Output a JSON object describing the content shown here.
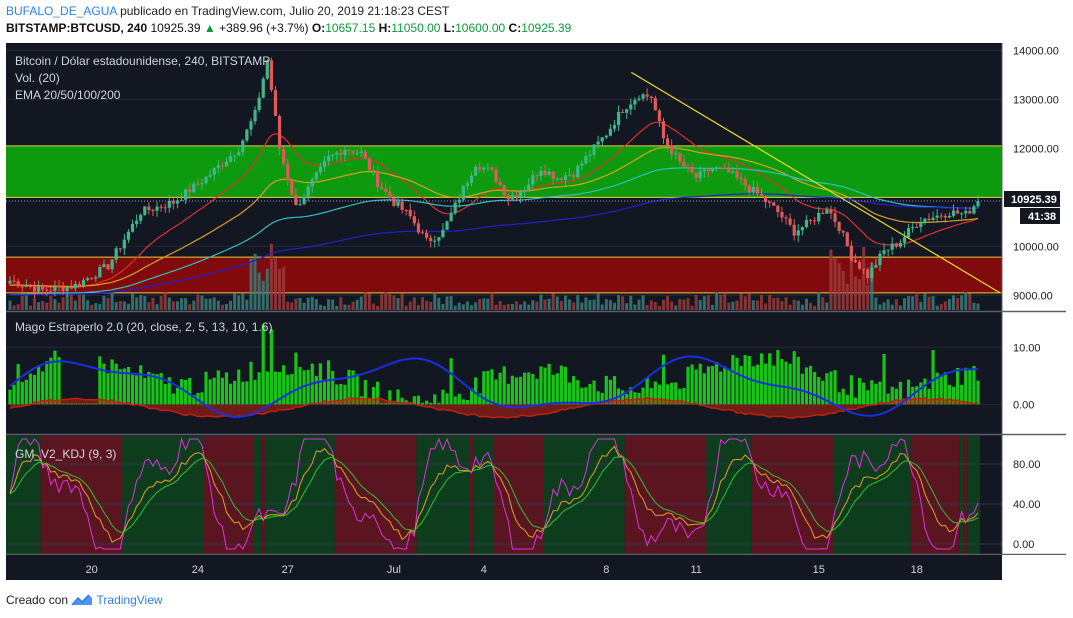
{
  "header": {
    "username": "BUFALO_DE_AGUA",
    "published_text": "publicado en TradingView.com, Julio 20, 2019 21:18:23 CEST",
    "symbol": "BITSTAMP:BTCUSD, 240",
    "last_price": "10925.39",
    "change": "+389.96 (+3.7%)",
    "o_label": "O:",
    "o_value": "10657.15",
    "h_label": "H:",
    "h_value": "11050.00",
    "l_label": "L:",
    "l_value": "10600.00",
    "c_label": "C:",
    "c_value": "10925.39"
  },
  "panes": {
    "main_title": "Bitcoin / Dólar estadounidense, 240, BITSTAMP",
    "vol_label": "Vol. (20)",
    "ema_label": "EMA 20/50/100/200",
    "osc_label": "Mago Estraperlo 2.0 (20, close, 2, 5, 13, 10, 1.6)",
    "kdj_label": "GM_V2_KDJ (9, 3)",
    "price_badge": "10925.39",
    "time_badge": "41:38"
  },
  "footer": {
    "created_with": "Creado con",
    "brand": "TradingView"
  },
  "colors": {
    "background": "#131722",
    "up": "#26a69a",
    "candle_up": "#3fb68b",
    "candle_down": "#e05a5a",
    "green_zone": "#0ea60e",
    "red_zone": "#8b0b0b",
    "trendline": "#e8e020",
    "ema20": "#e03030",
    "ema50": "#d8a020",
    "ema100": "#2fbfbf",
    "ema200": "#2020d0",
    "osc_bar": "#18c418",
    "osc_blue": "#1830e0",
    "osc_red": "#c02010",
    "kdj_k": "#e0a020",
    "kdj_d": "#30c030",
    "kdj_j": "#e030e0"
  },
  "chart_data": [
    {
      "type": "candlestick",
      "title": "Bitcoin / Dólar estadounidense, 240, BITSTAMP",
      "x_ticks": [
        "20",
        "24",
        "27",
        "Jul",
        "4",
        "8",
        "11",
        "15",
        "18"
      ],
      "y_ticks": [
        "14000.00",
        "13000.00",
        "12000.00",
        "11000.00",
        "10000.00",
        "9000.00"
      ],
      "ylim": [
        8700,
        14150
      ],
      "zones": [
        {
          "name": "green",
          "from": 11000,
          "to": 12050
        },
        {
          "name": "red",
          "from": 9050,
          "to": 9780
        }
      ],
      "trendlines": [
        {
          "from": [
            "8",
            13550
          ],
          "to": [
            "18",
            9050
          ]
        }
      ],
      "series": [
        {
          "name": "BTCUSD",
          "anchors": [
            [
              0,
              9300
            ],
            [
              8,
              9100
            ],
            [
              16,
              9200
            ],
            [
              24,
              9600
            ],
            [
              32,
              10700
            ],
            [
              40,
              10900
            ],
            [
              48,
              11400
            ],
            [
              56,
              12000
            ],
            [
              60,
              12700
            ],
            [
              63,
              13800
            ],
            [
              66,
              12000
            ],
            [
              70,
              10800
            ],
            [
              74,
              11300
            ],
            [
              78,
              11800
            ],
            [
              82,
              12000
            ],
            [
              86,
              11900
            ],
            [
              90,
              11300
            ],
            [
              94,
              10900
            ],
            [
              98,
              10600
            ],
            [
              102,
              10100
            ],
            [
              106,
              10300
            ],
            [
              110,
              11000
            ],
            [
              114,
              11700
            ],
            [
              118,
              11500
            ],
            [
              122,
              11000
            ],
            [
              126,
              11200
            ],
            [
              130,
              11600
            ],
            [
              134,
              11400
            ],
            [
              138,
              11500
            ],
            [
              142,
              11900
            ],
            [
              146,
              12300
            ],
            [
              150,
              12800
            ],
            [
              154,
              13100
            ],
            [
              157,
              13050
            ],
            [
              160,
              12200
            ],
            [
              164,
              11700
            ],
            [
              168,
              11400
            ],
            [
              172,
              11600
            ],
            [
              176,
              11500
            ],
            [
              180,
              11250
            ],
            [
              184,
              11000
            ],
            [
              188,
              10700
            ],
            [
              192,
              10300
            ],
            [
              196,
              10500
            ],
            [
              200,
              10800
            ],
            [
              203,
              10400
            ],
            [
              206,
              9800
            ],
            [
              210,
              9400
            ],
            [
              214,
              9900
            ],
            [
              218,
              10100
            ],
            [
              220,
              10300
            ],
            [
              223,
              10550
            ],
            [
              226,
              10600
            ],
            [
              230,
              10700
            ],
            [
              234,
              10650
            ],
            [
              237,
              10925
            ]
          ]
        },
        {
          "name": "Vol",
          "relative": true
        }
      ]
    },
    {
      "type": "histogram",
      "title": "Mago Estraperlo 2.0 (20, close, 2, 5, 13, 10, 1.6)",
      "y_ticks": [
        "10.00",
        "0.00"
      ],
      "ylim": [
        -5,
        16
      ]
    },
    {
      "type": "line",
      "title": "GM_V2_KDJ (9, 3)",
      "y_ticks": [
        "80.00",
        "40.00",
        "0.00"
      ],
      "ylim": [
        -10,
        108
      ],
      "series": [
        {
          "name": "K"
        },
        {
          "name": "D"
        },
        {
          "name": "J"
        }
      ]
    }
  ]
}
